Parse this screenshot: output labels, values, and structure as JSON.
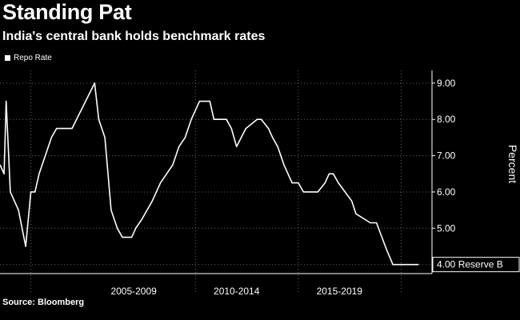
{
  "header": {
    "title": "Standing Pat",
    "subtitle": "India's central bank holds benchmark rates"
  },
  "footer": {
    "source": "Source: Bloomberg"
  },
  "colors": {
    "background": "#000000",
    "line": "#ffffff",
    "grid": "#666666"
  },
  "chart_data": {
    "type": "line",
    "title": "Standing Pat",
    "subtitle": "India's central bank holds benchmark rates",
    "xlabel": "",
    "ylabel": "Percent",
    "legend": {
      "placement": "top-left",
      "entries": [
        "Repo Rate"
      ]
    },
    "grid": true,
    "xlim": [
      2000.5,
      2021.5
    ],
    "ylim": [
      3.75,
      9.35
    ],
    "x_tick_labels": [
      {
        "label": "2005-2009",
        "x": 2007
      },
      {
        "label": "2010-2014",
        "x": 2012
      },
      {
        "label": "2015-2019",
        "x": 2017
      }
    ],
    "x_group_boundaries": [
      2002,
      2010,
      2015,
      2020
    ],
    "y_ticks": [
      4,
      5,
      6,
      7,
      8,
      9
    ],
    "y_tick_labels": [
      "4.00",
      "5.00",
      "6.00",
      "7.00",
      "8.00",
      "9.00"
    ],
    "last_value_label": "4.00 Reserve B",
    "series": [
      {
        "name": "Repo Rate",
        "x": [
          2000.5,
          2000.7,
          2000.8,
          2001.0,
          2001.4,
          2001.75,
          2002.0,
          2002.2,
          2002.4,
          2002.7,
          2003.0,
          2003.25,
          2003.6,
          2004.0,
          2005.1,
          2005.3,
          2005.6,
          2005.9,
          2006.2,
          2006.45,
          2006.7,
          2006.9,
          2007.1,
          2007.4,
          2007.9,
          2008.3,
          2008.6,
          2008.9,
          2009.2,
          2009.5,
          2009.8,
          2010.2,
          2010.4,
          2010.7,
          2010.9,
          2011.2,
          2011.5,
          2011.75,
          2012.0,
          2012.45,
          2013.0,
          2013.2,
          2013.55,
          2013.75,
          2014.0,
          2014.3,
          2014.5,
          2014.7,
          2015.0,
          2015.25,
          2015.55,
          2015.75,
          2015.95,
          2016.3,
          2016.5,
          2016.7,
          2016.95,
          2017.6,
          2017.8,
          2018.5,
          2018.8,
          2019.3,
          2019.6,
          2019.9,
          2020.2,
          2020.35,
          2020.5,
          2020.65,
          2020.85
        ],
        "values": [
          6.75,
          6.5,
          8.5,
          6.0,
          5.5,
          4.5,
          6.0,
          6.0,
          6.5,
          7.0,
          7.5,
          7.75,
          7.75,
          7.75,
          9.0,
          8.0,
          7.5,
          5.5,
          5.0,
          4.75,
          4.75,
          4.75,
          5.0,
          5.25,
          5.75,
          6.25,
          6.5,
          6.75,
          7.25,
          7.5,
          8.0,
          8.5,
          8.5,
          8.5,
          8.0,
          8.0,
          8.0,
          7.75,
          7.25,
          7.75,
          8.0,
          8.0,
          7.75,
          7.5,
          7.25,
          6.75,
          6.5,
          6.25,
          6.25,
          6.0,
          6.0,
          6.0,
          6.0,
          6.25,
          6.5,
          6.5,
          6.25,
          5.75,
          5.4,
          5.15,
          5.15,
          4.4,
          4.0,
          4.0,
          4.0,
          4.0,
          4.0,
          4.0,
          4.0
        ]
      }
    ]
  }
}
